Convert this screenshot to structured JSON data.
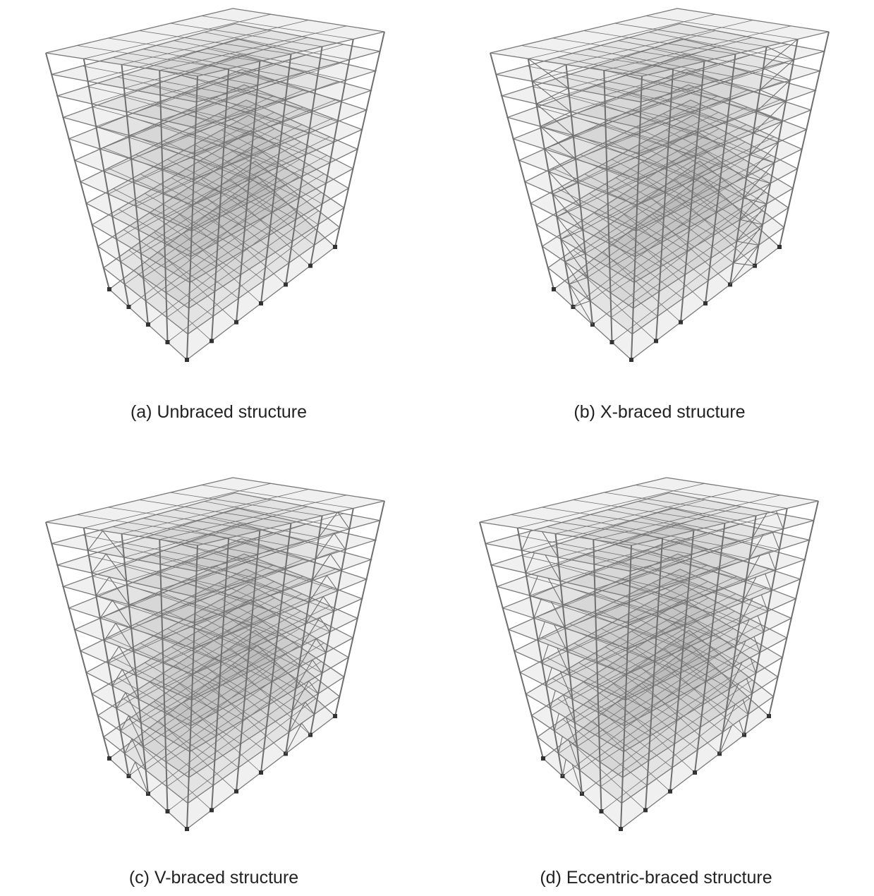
{
  "figure": {
    "panels": [
      {
        "caption": "(a) Unbraced structure"
      },
      {
        "caption": "(b) X-braced structure"
      },
      {
        "caption": "(c) V-braced structure"
      },
      {
        "caption": "(d) Eccentric-braced structure"
      }
    ]
  }
}
